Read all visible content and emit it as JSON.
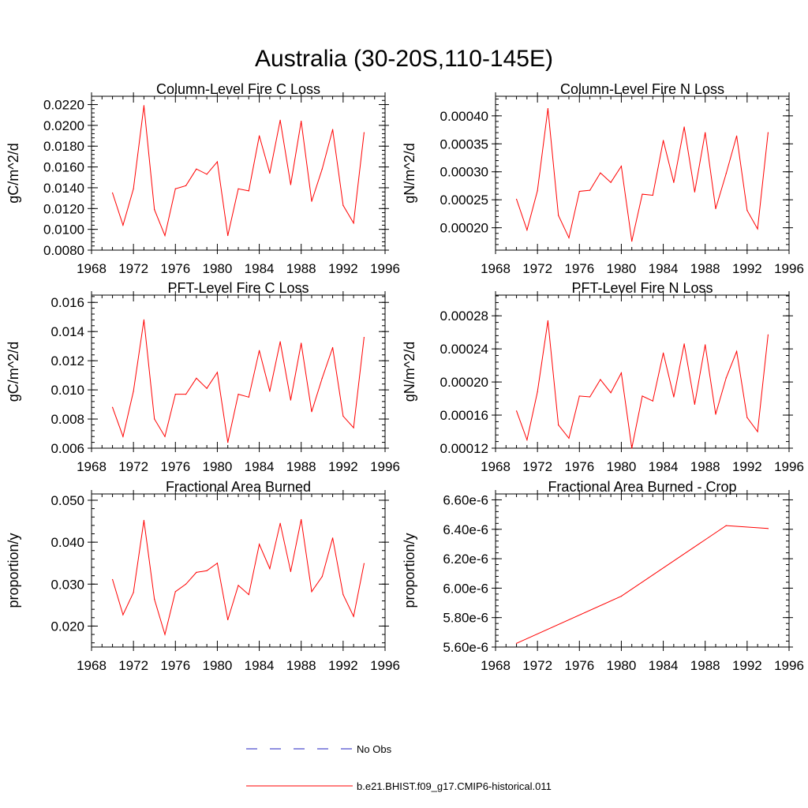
{
  "title": "Australia (30-20S,110-145E)",
  "colors": {
    "model": "#ff0000",
    "obs": "#2020c0",
    "axis": "#000000"
  },
  "legend": {
    "obs_label": "No Obs",
    "model_label": "b.e21.BHIST.f09_g17.CMIP6-historical.011"
  },
  "chart_data": [
    {
      "type": "line",
      "title": "Column-Level Fire C Loss",
      "ylabel": "gC/m^2/d",
      "xlim": [
        1968,
        1996
      ],
      "ylim": [
        0.008,
        0.0228
      ],
      "xticks": [
        1968,
        1972,
        1976,
        1980,
        1984,
        1988,
        1992,
        1996
      ],
      "xtick_labels": [
        "1968",
        "1972",
        "1976",
        "1980",
        "1984",
        "1988",
        "1992",
        "1996"
      ],
      "yticks": [
        0.008,
        0.01,
        0.012,
        0.014,
        0.016,
        0.018,
        0.02,
        0.022
      ],
      "ytick_labels": [
        "0.0080",
        "0.0100",
        "0.0120",
        "0.0140",
        "0.0160",
        "0.0180",
        "0.0200",
        "0.0220"
      ],
      "series": [
        {
          "x": [
            1970,
            1971,
            1972,
            1973,
            1974,
            1975,
            1976,
            1977,
            1978,
            1979,
            1980,
            1981,
            1982,
            1983,
            1984,
            1985,
            1986,
            1987,
            1988,
            1989,
            1990,
            1991,
            1992,
            1993,
            1994
          ],
          "y": [
            0.0135,
            0.0104,
            0.0139,
            0.0219,
            0.0119,
            0.0094,
            0.0139,
            0.0142,
            0.0158,
            0.0153,
            0.0165,
            0.0094,
            0.0139,
            0.0137,
            0.019,
            0.0154,
            0.0205,
            0.0143,
            0.0204,
            0.0127,
            0.0158,
            0.0196,
            0.0123,
            0.0106,
            0.0193
          ]
        }
      ]
    },
    {
      "type": "line",
      "title": "Column-Level Fire N Loss",
      "ylabel": "gN/m^2/d",
      "xlim": [
        1968,
        1996
      ],
      "ylim": [
        0.00016,
        0.000435
      ],
      "xticks": [
        1968,
        1972,
        1976,
        1980,
        1984,
        1988,
        1992,
        1996
      ],
      "xtick_labels": [
        "1968",
        "1972",
        "1976",
        "1980",
        "1984",
        "1988",
        "1992",
        "1996"
      ],
      "yticks": [
        0.0002,
        0.00025,
        0.0003,
        0.00035,
        0.0004
      ],
      "ytick_labels": [
        "0.00020",
        "0.00025",
        "0.00030",
        "0.00035",
        "0.00040"
      ],
      "series": [
        {
          "x": [
            1970,
            1971,
            1972,
            1973,
            1974,
            1975,
            1976,
            1977,
            1978,
            1979,
            1980,
            1981,
            1982,
            1983,
            1984,
            1985,
            1986,
            1987,
            1988,
            1989,
            1990,
            1991,
            1992,
            1993,
            1994
          ],
          "y": [
            0.000251,
            0.000196,
            0.000266,
            0.000413,
            0.000222,
            0.000182,
            0.000265,
            0.000267,
            0.000298,
            0.000281,
            0.00031,
            0.000176,
            0.00026,
            0.000258,
            0.000356,
            0.000281,
            0.00038,
            0.000264,
            0.00037,
            0.000234,
            0.000297,
            0.000364,
            0.000231,
            0.000198,
            0.00037
          ]
        }
      ]
    },
    {
      "type": "line",
      "title": "PFT-Level Fire C Loss",
      "ylabel": "gC/m^2/d",
      "xlim": [
        1968,
        1996
      ],
      "ylim": [
        0.006,
        0.0165
      ],
      "xticks": [
        1968,
        1972,
        1976,
        1980,
        1984,
        1988,
        1992,
        1996
      ],
      "xtick_labels": [
        "1968",
        "1972",
        "1976",
        "1980",
        "1984",
        "1988",
        "1992",
        "1996"
      ],
      "yticks": [
        0.006,
        0.008,
        0.01,
        0.012,
        0.014,
        0.016
      ],
      "ytick_labels": [
        "0.006",
        "0.008",
        "0.010",
        "0.012",
        "0.014",
        "0.016"
      ],
      "series": [
        {
          "x": [
            1970,
            1971,
            1972,
            1973,
            1974,
            1975,
            1976,
            1977,
            1978,
            1979,
            1980,
            1981,
            1982,
            1983,
            1984,
            1985,
            1986,
            1987,
            1988,
            1989,
            1990,
            1991,
            1992,
            1993,
            1994
          ],
          "y": [
            0.0088,
            0.0068,
            0.0099,
            0.0148,
            0.008,
            0.0068,
            0.0097,
            0.0097,
            0.0108,
            0.0101,
            0.0112,
            0.0064,
            0.0097,
            0.0095,
            0.0127,
            0.0099,
            0.0133,
            0.0093,
            0.0132,
            0.0085,
            0.0108,
            0.0129,
            0.0082,
            0.0074,
            0.0136
          ]
        }
      ]
    },
    {
      "type": "line",
      "title": "PFT-Level Fire N Loss",
      "ylabel": "gN/m^2/d",
      "xlim": [
        1968,
        1996
      ],
      "ylim": [
        0.00012,
        0.000305
      ],
      "xticks": [
        1968,
        1972,
        1976,
        1980,
        1984,
        1988,
        1992,
        1996
      ],
      "xtick_labels": [
        "1968",
        "1972",
        "1976",
        "1980",
        "1984",
        "1988",
        "1992",
        "1996"
      ],
      "yticks": [
        0.00012,
        0.00016,
        0.0002,
        0.00024,
        0.00028
      ],
      "ytick_labels": [
        "0.00012",
        "0.00016",
        "0.00020",
        "0.00024",
        "0.00028"
      ],
      "series": [
        {
          "x": [
            1970,
            1971,
            1972,
            1973,
            1974,
            1975,
            1976,
            1977,
            1978,
            1979,
            1980,
            1981,
            1982,
            1983,
            1984,
            1985,
            1986,
            1987,
            1988,
            1989,
            1990,
            1991,
            1992,
            1993,
            1994
          ],
          "y": [
            0.000165,
            0.00013,
            0.000188,
            0.000274,
            0.000148,
            0.000132,
            0.000183,
            0.000182,
            0.000203,
            0.000187,
            0.000211,
            0.00012,
            0.000183,
            0.000177,
            0.000235,
            0.000182,
            0.000246,
            0.000173,
            0.000245,
            0.000161,
            0.000205,
            0.000237,
            0.000157,
            0.00014,
            0.000257
          ]
        }
      ]
    },
    {
      "type": "line",
      "title": "Fractional Area Burned",
      "ylabel": "proportion/y",
      "xlim": [
        1968,
        1996
      ],
      "ylim": [
        0.015,
        0.0515
      ],
      "xticks": [
        1968,
        1972,
        1976,
        1980,
        1984,
        1988,
        1992,
        1996
      ],
      "xtick_labels": [
        "1968",
        "1972",
        "1976",
        "1980",
        "1984",
        "1988",
        "1992",
        "1996"
      ],
      "yticks": [
        0.02,
        0.03,
        0.04,
        0.05
      ],
      "ytick_labels": [
        "0.020",
        "0.030",
        "0.040",
        "0.050"
      ],
      "series": [
        {
          "x": [
            1970,
            1971,
            1972,
            1973,
            1974,
            1975,
            1976,
            1977,
            1978,
            1979,
            1980,
            1981,
            1982,
            1983,
            1984,
            1985,
            1986,
            1987,
            1988,
            1989,
            1990,
            1991,
            1992,
            1993,
            1994
          ],
          "y": [
            0.0311,
            0.0227,
            0.028,
            0.0452,
            0.0264,
            0.018,
            0.0282,
            0.03,
            0.0328,
            0.0332,
            0.035,
            0.0215,
            0.0297,
            0.0275,
            0.0395,
            0.0337,
            0.0445,
            0.033,
            0.0454,
            0.0282,
            0.0318,
            0.041,
            0.0275,
            0.0223,
            0.0349
          ]
        }
      ]
    },
    {
      "type": "line",
      "title": "Fractional Area Burned - Crop",
      "ylabel": "proportion/y",
      "xlim": [
        1968,
        1996
      ],
      "ylim": [
        5.6e-06,
        6.64e-06
      ],
      "xticks": [
        1968,
        1972,
        1976,
        1980,
        1984,
        1988,
        1992,
        1996
      ],
      "xtick_labels": [
        "1968",
        "1972",
        "1976",
        "1980",
        "1984",
        "1988",
        "1992",
        "1996"
      ],
      "yticks": [
        5.6e-06,
        5.8e-06,
        6e-06,
        6.2e-06,
        6.4e-06,
        6.6e-06
      ],
      "ytick_labels": [
        "5.60e-6",
        "5.80e-6",
        "6.00e-6",
        "6.20e-6",
        "6.40e-6",
        "6.60e-6"
      ],
      "series": [
        {
          "x": [
            1970,
            1980,
            1990,
            1994
          ],
          "y": [
            5.625e-06,
            5.945e-06,
            6.425e-06,
            6.405e-06
          ]
        }
      ]
    }
  ]
}
